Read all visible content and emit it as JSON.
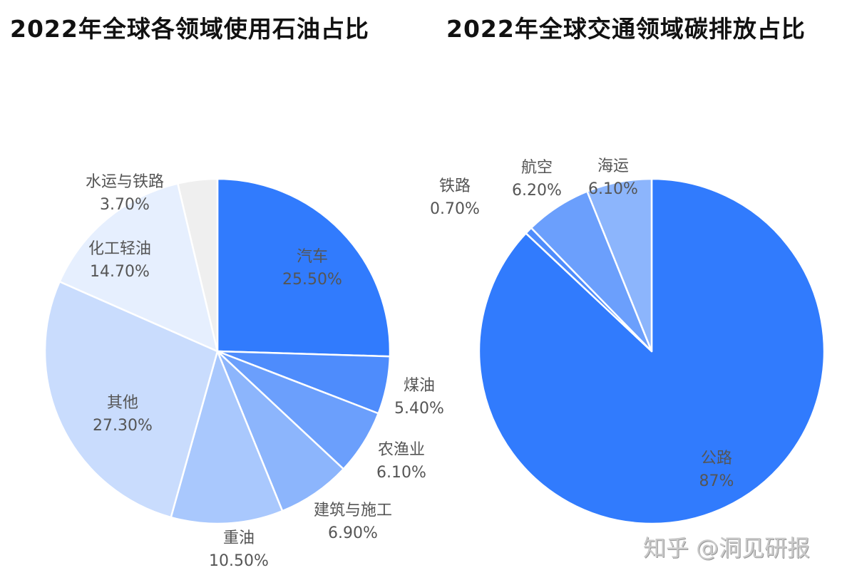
{
  "chart_data": [
    {
      "type": "pie",
      "title": "2022年全球各领域使用石油占比",
      "start": "top",
      "direction": "clockwise",
      "slices": [
        {
          "label": "汽车",
          "value": 25.5,
          "display": "25.50%",
          "color": "#317bfd"
        },
        {
          "label": "煤油",
          "value": 5.4,
          "display": "5.40%",
          "color": "#4e8cfc"
        },
        {
          "label": "农渔业",
          "value": 6.1,
          "display": "6.10%",
          "color": "#6b9ffc"
        },
        {
          "label": "建筑与施工",
          "value": 6.9,
          "display": "6.90%",
          "color": "#8cb5fc"
        },
        {
          "label": "重油",
          "value": 10.5,
          "display": "10.50%",
          "color": "#a9c8fd"
        },
        {
          "label": "其他",
          "value": 27.3,
          "display": "27.30%",
          "color": "#c9dcfd"
        },
        {
          "label": "化工轻油",
          "value": 14.7,
          "display": "14.70%",
          "color": "#e6effe"
        },
        {
          "label": "水运与铁路",
          "value": 3.7,
          "display": "3.70%",
          "color": "#efefef"
        }
      ]
    },
    {
      "type": "pie",
      "title": "2022年全球交通领域碳排放占比",
      "start": "top",
      "direction": "clockwise",
      "slices": [
        {
          "label": "公路",
          "value": 87,
          "display": "87%",
          "color": "#317bfd"
        },
        {
          "label": "铁路",
          "value": 0.7,
          "display": "0.70%",
          "color": "#4e8cfc"
        },
        {
          "label": "航空",
          "value": 6.2,
          "display": "6.20%",
          "color": "#6b9ffc"
        },
        {
          "label": "海运",
          "value": 6.1,
          "display": "6.10%",
          "color": "#8cb5fc"
        }
      ]
    }
  ],
  "watermark": "知乎 @洞见研报"
}
